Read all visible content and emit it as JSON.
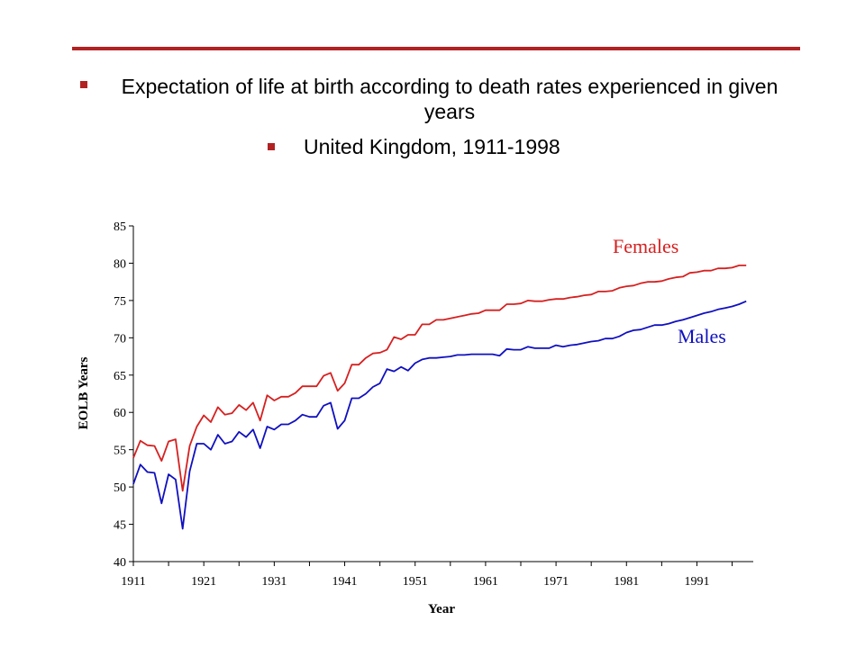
{
  "header": {
    "bullet1": "Expectation of life at birth according to death rates experienced in given years",
    "bullet2": "United Kingdom, 1911-1998"
  },
  "colors": {
    "accent": "#b22222",
    "females": "#d62020",
    "males": "#1010c0"
  },
  "chart_data": {
    "type": "line",
    "title": "",
    "xlabel": "Year",
    "ylabel": "EOLB Years",
    "xlim": [
      1911,
      1999
    ],
    "ylim": [
      40,
      85
    ],
    "yticks": [
      40,
      45,
      50,
      55,
      60,
      65,
      70,
      75,
      80,
      85
    ],
    "xtick_labels": [
      1911,
      1921,
      1931,
      1941,
      1951,
      1961,
      1971,
      1981,
      1991
    ],
    "grid": false,
    "x": [
      1911,
      1912,
      1913,
      1914,
      1915,
      1916,
      1917,
      1918,
      1919,
      1920,
      1921,
      1922,
      1923,
      1924,
      1925,
      1926,
      1927,
      1928,
      1929,
      1930,
      1931,
      1932,
      1933,
      1934,
      1935,
      1936,
      1937,
      1938,
      1939,
      1940,
      1941,
      1942,
      1943,
      1944,
      1945,
      1946,
      1947,
      1948,
      1949,
      1950,
      1951,
      1952,
      1953,
      1954,
      1955,
      1956,
      1957,
      1958,
      1959,
      1960,
      1961,
      1962,
      1963,
      1964,
      1965,
      1966,
      1967,
      1968,
      1969,
      1970,
      1971,
      1972,
      1973,
      1974,
      1975,
      1976,
      1977,
      1978,
      1979,
      1980,
      1981,
      1982,
      1983,
      1984,
      1985,
      1986,
      1987,
      1988,
      1989,
      1990,
      1991,
      1992,
      1993,
      1994,
      1995,
      1996,
      1997,
      1998
    ],
    "series": [
      {
        "name": "Females",
        "values": [
          53.9,
          56.2,
          55.6,
          55.5,
          53.5,
          56.1,
          56.4,
          49.5,
          55.5,
          58.1,
          59.6,
          58.7,
          60.7,
          59.7,
          59.9,
          61.0,
          60.3,
          61.3,
          58.9,
          62.3,
          61.6,
          62.1,
          62.1,
          62.6,
          63.5,
          63.5,
          63.5,
          64.9,
          65.3,
          62.9,
          63.9,
          66.4,
          66.4,
          67.3,
          67.9,
          68.0,
          68.4,
          70.1,
          69.8,
          70.4,
          70.4,
          71.8,
          71.8,
          72.4,
          72.4,
          72.6,
          72.8,
          73.0,
          73.2,
          73.3,
          73.7,
          73.7,
          73.7,
          74.5,
          74.5,
          74.6,
          75.0,
          74.9,
          74.9,
          75.1,
          75.2,
          75.2,
          75.4,
          75.5,
          75.7,
          75.8,
          76.2,
          76.2,
          76.3,
          76.7,
          76.9,
          77.0,
          77.3,
          77.5,
          77.5,
          77.6,
          77.9,
          78.1,
          78.2,
          78.7,
          78.8,
          79.0,
          79.0,
          79.3,
          79.3,
          79.4,
          79.7,
          79.7
        ]
      },
      {
        "name": "Males",
        "values": [
          50.4,
          53.0,
          52.0,
          51.9,
          47.8,
          51.7,
          51.0,
          44.4,
          52.1,
          55.8,
          55.8,
          55.0,
          57.0,
          55.8,
          56.1,
          57.4,
          56.7,
          57.7,
          55.2,
          58.1,
          57.7,
          58.4,
          58.4,
          58.9,
          59.7,
          59.4,
          59.4,
          60.9,
          61.3,
          57.8,
          58.9,
          61.9,
          61.9,
          62.5,
          63.4,
          63.9,
          65.8,
          65.5,
          66.1,
          65.6,
          66.6,
          67.1,
          67.3,
          67.3,
          67.4,
          67.5,
          67.7,
          67.7,
          67.8,
          67.8,
          67.8,
          67.8,
          67.6,
          68.5,
          68.4,
          68.4,
          68.8,
          68.6,
          68.6,
          68.6,
          69.0,
          68.8,
          69.0,
          69.1,
          69.3,
          69.5,
          69.6,
          69.9,
          69.9,
          70.2,
          70.7,
          71.0,
          71.1,
          71.4,
          71.7,
          71.7,
          71.9,
          72.2,
          72.4,
          72.7,
          73.0,
          73.3,
          73.5,
          73.8,
          74.0,
          74.2,
          74.5,
          74.9
        ]
      }
    ]
  }
}
